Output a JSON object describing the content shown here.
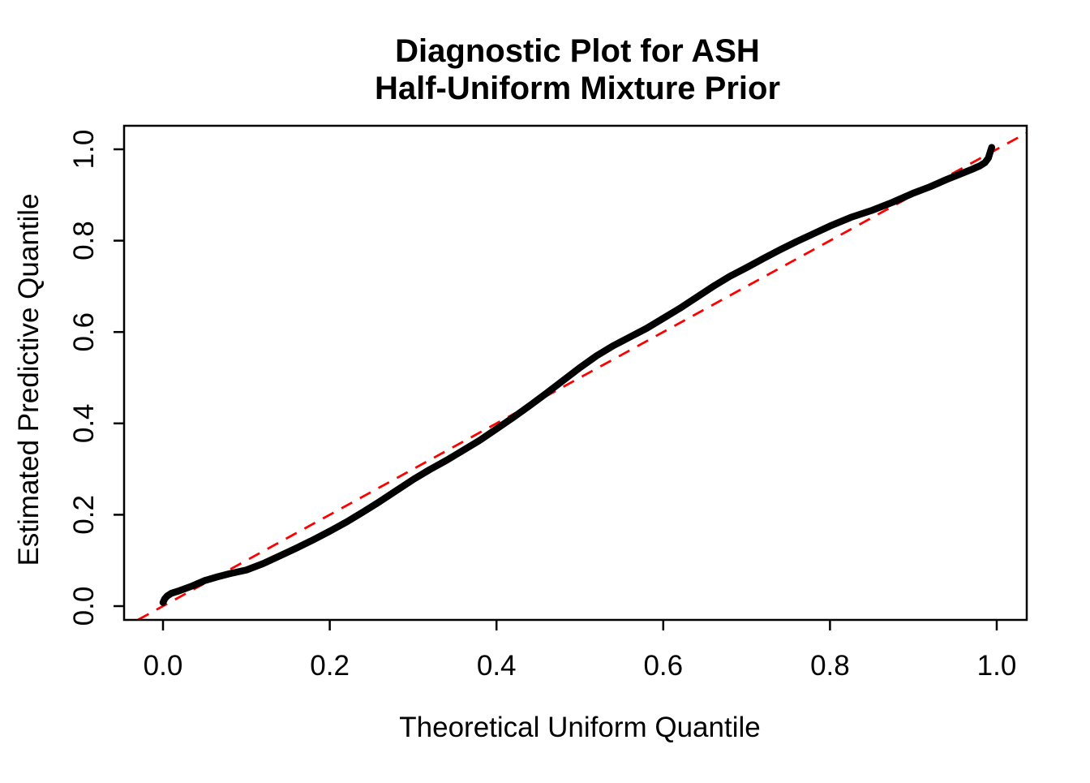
{
  "title": {
    "line1": "Diagnostic Plot for ASH",
    "line2": "Half-Uniform Mixture Prior"
  },
  "axes": {
    "x": {
      "label": "Theoretical Uniform Quantile",
      "tick_labels": [
        "0.0",
        "0.2",
        "0.4",
        "0.6",
        "0.8",
        "1.0"
      ],
      "tick_values": [
        0.0,
        0.2,
        0.4,
        0.6,
        0.8,
        1.0
      ]
    },
    "y": {
      "label": "Estimated Predictive Quantile",
      "tick_labels": [
        "0.0",
        "0.2",
        "0.4",
        "0.6",
        "0.8",
        "1.0"
      ],
      "tick_values": [
        0.0,
        0.2,
        0.4,
        0.6,
        0.8,
        1.0
      ]
    }
  },
  "colors": {
    "curve": "#000000",
    "reference_line": "#FF0000",
    "frame": "#000000",
    "background": "#FFFFFF"
  },
  "chart_data": {
    "type": "line",
    "title": "Diagnostic Plot for ASH Half-Uniform Mixture Prior",
    "xlabel": "Theoretical Uniform Quantile",
    "ylabel": "Estimated Predictive Quantile",
    "xlim": [
      -0.047,
      1.036
    ],
    "ylim": [
      -0.03,
      1.051
    ],
    "grid": false,
    "legend": null,
    "series": [
      {
        "name": "estimated-vs-theoretical-quantiles",
        "style": "solid-thick",
        "color": "#000000",
        "points": [
          [
            0.0,
            0.008
          ],
          [
            0.002,
            0.016
          ],
          [
            0.005,
            0.022
          ],
          [
            0.01,
            0.028
          ],
          [
            0.02,
            0.034
          ],
          [
            0.035,
            0.044
          ],
          [
            0.05,
            0.056
          ],
          [
            0.065,
            0.064
          ],
          [
            0.08,
            0.071
          ],
          [
            0.1,
            0.079
          ],
          [
            0.12,
            0.093
          ],
          [
            0.14,
            0.11
          ],
          [
            0.16,
            0.127
          ],
          [
            0.18,
            0.145
          ],
          [
            0.2,
            0.164
          ],
          [
            0.22,
            0.184
          ],
          [
            0.24,
            0.206
          ],
          [
            0.26,
            0.229
          ],
          [
            0.28,
            0.253
          ],
          [
            0.3,
            0.277
          ],
          [
            0.32,
            0.299
          ],
          [
            0.34,
            0.319
          ],
          [
            0.36,
            0.341
          ],
          [
            0.38,
            0.363
          ],
          [
            0.4,
            0.388
          ],
          [
            0.42,
            0.413
          ],
          [
            0.44,
            0.439
          ],
          [
            0.46,
            0.466
          ],
          [
            0.48,
            0.494
          ],
          [
            0.5,
            0.522
          ],
          [
            0.52,
            0.548
          ],
          [
            0.54,
            0.57
          ],
          [
            0.56,
            0.589
          ],
          [
            0.58,
            0.608
          ],
          [
            0.6,
            0.63
          ],
          [
            0.62,
            0.652
          ],
          [
            0.64,
            0.676
          ],
          [
            0.66,
            0.7
          ],
          [
            0.68,
            0.722
          ],
          [
            0.7,
            0.741
          ],
          [
            0.72,
            0.761
          ],
          [
            0.74,
            0.78
          ],
          [
            0.76,
            0.798
          ],
          [
            0.78,
            0.815
          ],
          [
            0.8,
            0.832
          ],
          [
            0.825,
            0.851
          ],
          [
            0.85,
            0.866
          ],
          [
            0.875,
            0.884
          ],
          [
            0.9,
            0.904
          ],
          [
            0.92,
            0.918
          ],
          [
            0.94,
            0.934
          ],
          [
            0.955,
            0.945
          ],
          [
            0.97,
            0.956
          ],
          [
            0.98,
            0.964
          ],
          [
            0.986,
            0.971
          ],
          [
            0.99,
            0.981
          ],
          [
            0.992,
            0.993
          ],
          [
            0.994,
            1.004
          ]
        ]
      },
      {
        "name": "identity-reference-line",
        "style": "dashed",
        "color": "#FF0000",
        "points": [
          [
            -0.03,
            -0.03
          ],
          [
            1.036,
            1.036
          ]
        ]
      }
    ]
  }
}
